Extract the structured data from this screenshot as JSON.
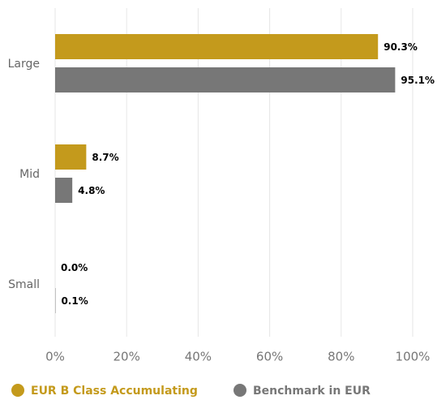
{
  "chart_data": {
    "type": "hbar",
    "categories": [
      "Large",
      "Mid",
      "Small"
    ],
    "series": [
      {
        "name": "EUR B Class Accumulating",
        "color": "#c49a1c",
        "values": [
          90.3,
          8.7,
          0.0
        ],
        "value_labels": [
          "90.3%",
          "8.7%",
          "0.0%"
        ]
      },
      {
        "name": "Benchmark in EUR",
        "color": "#777777",
        "values": [
          95.1,
          4.8,
          0.1
        ],
        "value_labels": [
          "95.1%",
          "4.8%",
          "0.1%"
        ]
      }
    ],
    "xlim": [
      0,
      100
    ],
    "xticks": [
      {
        "value": 0,
        "label": "0%"
      },
      {
        "value": 20,
        "label": "20%"
      },
      {
        "value": 40,
        "label": "40%"
      },
      {
        "value": 60,
        "label": "60%"
      },
      {
        "value": 80,
        "label": "80%"
      },
      {
        "value": 100,
        "label": "100%"
      }
    ],
    "grid": true,
    "legend": "bottom"
  }
}
